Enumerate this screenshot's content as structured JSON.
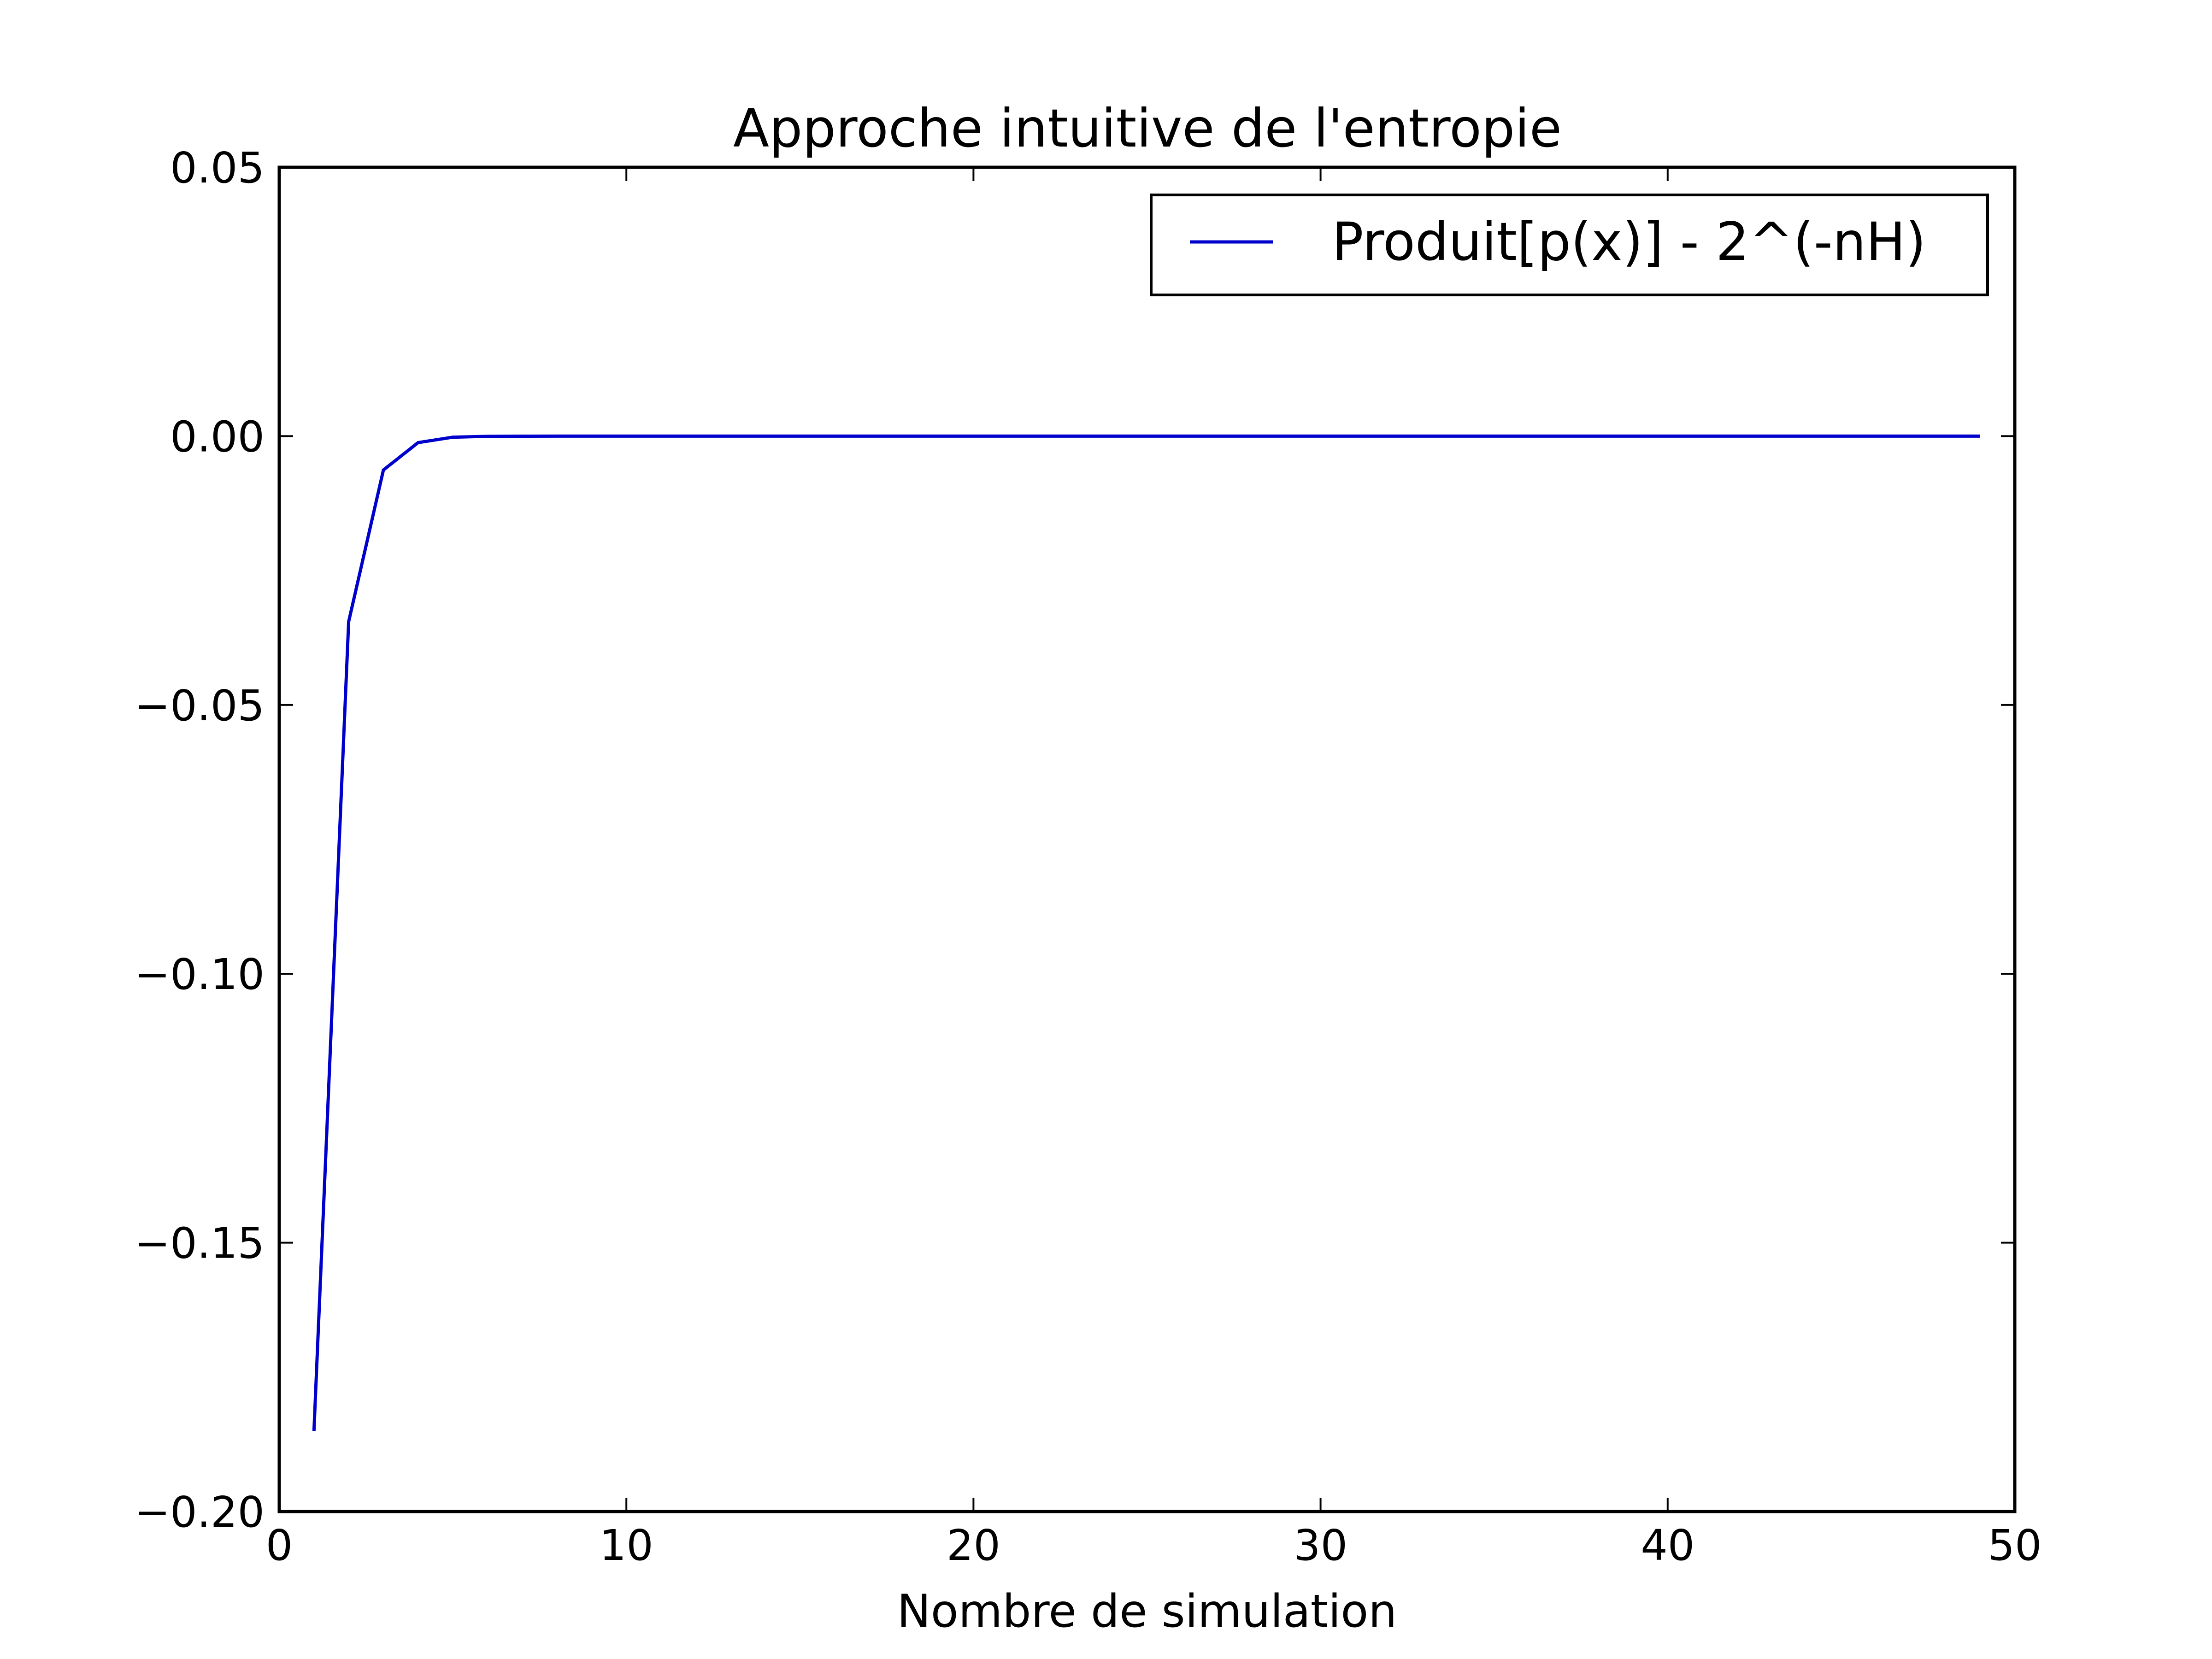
{
  "chart_data": {
    "type": "line",
    "title": "Approche intuitive de l'entropie",
    "xlabel": "Nombre de simulation",
    "ylabel": "",
    "xlim": [
      0,
      50
    ],
    "ylim": [
      -0.2,
      0.05
    ],
    "xticks": [
      0,
      10,
      20,
      30,
      40,
      50
    ],
    "xtick_labels": [
      "0",
      "10",
      "20",
      "30",
      "40",
      "50"
    ],
    "yticks": [
      0.05,
      0.0,
      -0.05,
      -0.1,
      -0.15,
      -0.2
    ],
    "ytick_labels": [
      "0.05",
      "0.00",
      "−0.05",
      "−0.10",
      "−0.15",
      "−0.20"
    ],
    "grid": false,
    "legend_position": "top-right",
    "series": [
      {
        "name": "Produit[p(x)] - 2^(-nH)",
        "color": "#0000cc",
        "x": [
          1,
          2,
          3,
          4,
          5,
          6,
          7,
          8,
          9,
          10,
          11,
          12,
          13,
          14,
          15,
          16,
          17,
          18,
          19,
          20,
          21,
          22,
          23,
          24,
          25,
          26,
          27,
          28,
          29,
          30,
          31,
          32,
          33,
          34,
          35,
          36,
          37,
          38,
          39,
          40,
          41,
          42,
          43,
          44,
          45,
          46,
          47,
          48,
          49
        ],
        "y": [
          -0.185,
          -0.0345,
          -0.0063,
          -0.0012,
          -0.0002,
          -4e-05,
          -1e-05,
          0,
          0,
          0,
          0,
          0,
          0,
          0,
          0,
          0,
          0,
          0,
          0,
          0,
          0,
          0,
          0,
          0,
          0,
          0,
          0,
          0,
          0,
          0,
          0,
          0,
          0,
          0,
          0,
          0,
          0,
          0,
          0,
          0,
          0,
          0,
          0,
          0,
          0,
          0,
          0,
          0,
          0
        ]
      }
    ]
  }
}
